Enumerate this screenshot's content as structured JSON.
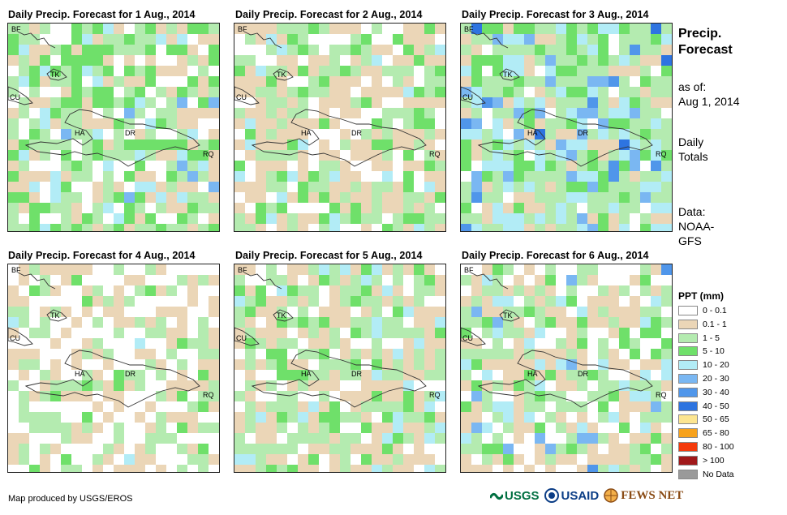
{
  "panels": [
    {
      "title": "Daily Precip. Forecast for 1 Aug., 2014"
    },
    {
      "title": "Daily Precip. Forecast for 2 Aug., 2014"
    },
    {
      "title": "Daily Precip. Forecast for 3 Aug., 2014"
    },
    {
      "title": "Daily Precip. Forecast for 4 Aug., 2014"
    },
    {
      "title": "Daily Precip. Forecast for 5 Aug., 2014"
    },
    {
      "title": "Daily Precip. Forecast for 6 Aug., 2014"
    }
  ],
  "place_labels": {
    "bf": "BF",
    "tk": "TK",
    "cu": "CU",
    "ha": "HA",
    "dr": "DR",
    "rq": "RQ"
  },
  "sidebar": {
    "title_line1": "Precip.",
    "title_line2": "Forecast",
    "asof_line1": "as of:",
    "asof_line2": "Aug 1, 2014",
    "daily_line1": "Daily",
    "daily_line2": "Totals",
    "data_line1": "Data:",
    "data_line2": "NOAA-",
    "data_line3": "GFS"
  },
  "legend": {
    "title": "PPT (mm)",
    "items": [
      {
        "label": "0 - 0.1",
        "color": "#ffffff"
      },
      {
        "label": "0.1 - 1",
        "color": "#ebd6b7"
      },
      {
        "label": "1 - 5",
        "color": "#b4ebb0"
      },
      {
        "label": "5 - 10",
        "color": "#6fe06a"
      },
      {
        "label": "10 - 20",
        "color": "#b2ecf6"
      },
      {
        "label": "20 - 30",
        "color": "#7ab7f2"
      },
      {
        "label": "30 - 40",
        "color": "#5096ea"
      },
      {
        "label": "40 - 50",
        "color": "#2e74e0"
      },
      {
        "label": "50 - 65",
        "color": "#fce590"
      },
      {
        "label": "65 - 80",
        "color": "#f7a21c"
      },
      {
        "label": "80 - 100",
        "color": "#f43a0c"
      },
      {
        "label": "> 100",
        "color": "#a0181a"
      },
      {
        "label": "No Data",
        "color": "#9a9a9a"
      }
    ]
  },
  "footer": {
    "credit": "Map produced by USGS/EROS",
    "logo_usgs": "USGS",
    "logo_usaid": "USAID",
    "logo_fews": "FEWS NET"
  }
}
